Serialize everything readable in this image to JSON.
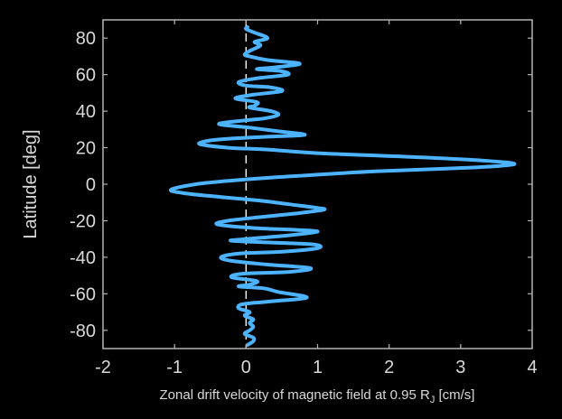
{
  "chart_data": {
    "type": "line",
    "title": "",
    "xlabel": "Zonal drift velocity of magnetic field at 0.95 R",
    "xlabel_subscript": "J",
    "xlabel_suffix": " [cm/s]",
    "ylabel": "Latitude [deg]",
    "xlim": [
      -2,
      4
    ],
    "ylim": [
      -90,
      90
    ],
    "xticks": [
      -2,
      -1,
      0,
      1,
      2,
      3,
      4
    ],
    "yticks": [
      -80,
      -60,
      -40,
      -20,
      0,
      20,
      40,
      60,
      80
    ],
    "xtick_labels": [
      "-2",
      "-1",
      "0",
      "1",
      "2",
      "3",
      "4"
    ],
    "ytick_labels": [
      "-80",
      "-60",
      "-40",
      "-20",
      "0",
      "20",
      "40",
      "60",
      "80"
    ],
    "grid": false,
    "zero_reference_line": {
      "x": 0,
      "style": "dashed",
      "color": "#ffffff"
    },
    "series": [
      {
        "color": "#4db3ff",
        "points": [
          [
            0.02,
            86
          ],
          [
            0.0,
            85
          ],
          [
            0.12,
            83
          ],
          [
            0.3,
            80
          ],
          [
            0.12,
            78
          ],
          [
            0.2,
            76
          ],
          [
            0.05,
            73
          ],
          [
            -0.02,
            71
          ],
          [
            0.05,
            70
          ],
          [
            0.3,
            68
          ],
          [
            0.75,
            66
          ],
          [
            0.4,
            64
          ],
          [
            0.15,
            63
          ],
          [
            0.48,
            62
          ],
          [
            0.58,
            60
          ],
          [
            0.15,
            58
          ],
          [
            -0.1,
            56
          ],
          [
            0.0,
            54
          ],
          [
            0.35,
            53
          ],
          [
            0.5,
            51
          ],
          [
            0.1,
            49
          ],
          [
            -0.15,
            47
          ],
          [
            0.15,
            45
          ],
          [
            0.12,
            43
          ],
          [
            0.05,
            42
          ],
          [
            0.35,
            40
          ],
          [
            0.45,
            38
          ],
          [
            0.25,
            36
          ],
          [
            0.0,
            35
          ],
          [
            -0.38,
            33
          ],
          [
            0.05,
            31
          ],
          [
            0.45,
            29
          ],
          [
            0.82,
            27
          ],
          [
            0.3,
            26
          ],
          [
            -0.2,
            25
          ],
          [
            -0.5,
            24
          ],
          [
            -0.65,
            22
          ],
          [
            -0.25,
            20
          ],
          [
            0.3,
            19
          ],
          [
            1.0,
            17
          ],
          [
            2.3,
            15
          ],
          [
            3.3,
            13
          ],
          [
            3.75,
            11
          ],
          [
            3.1,
            9
          ],
          [
            1.8,
            7
          ],
          [
            0.5,
            4
          ],
          [
            -0.2,
            2
          ],
          [
            -0.7,
            0
          ],
          [
            -1.05,
            -3
          ],
          [
            -0.85,
            -5
          ],
          [
            -0.35,
            -7
          ],
          [
            0.2,
            -9
          ],
          [
            0.6,
            -11
          ],
          [
            1.0,
            -13
          ],
          [
            1.08,
            -14
          ],
          [
            0.7,
            -16
          ],
          [
            0.2,
            -18
          ],
          [
            -0.25,
            -20
          ],
          [
            -0.4,
            -22
          ],
          [
            0.1,
            -24
          ],
          [
            0.7,
            -25
          ],
          [
            1.0,
            -26
          ],
          [
            0.6,
            -28
          ],
          [
            0.0,
            -30
          ],
          [
            -0.2,
            -31
          ],
          [
            0.4,
            -32
          ],
          [
            0.95,
            -33
          ],
          [
            1.0,
            -35
          ],
          [
            0.5,
            -37
          ],
          [
            -0.1,
            -38
          ],
          [
            -0.35,
            -40
          ],
          [
            -0.2,
            -42
          ],
          [
            0.3,
            -44
          ],
          [
            0.9,
            -46
          ],
          [
            0.6,
            -48
          ],
          [
            -0.05,
            -49
          ],
          [
            -0.2,
            -51
          ],
          [
            0.15,
            -53
          ],
          [
            0.05,
            -55
          ],
          [
            -0.1,
            -56
          ],
          [
            0.25,
            -57
          ],
          [
            0.45,
            -59
          ],
          [
            0.85,
            -62
          ],
          [
            0.4,
            -64
          ],
          [
            0.1,
            -65
          ],
          [
            -0.08,
            -66
          ],
          [
            -0.1,
            -68
          ],
          [
            0.05,
            -70
          ],
          [
            -0.02,
            -72
          ],
          [
            0.1,
            -74
          ],
          [
            0.05,
            -76
          ],
          [
            0.1,
            -78
          ],
          [
            0.05,
            -80
          ],
          [
            -0.02,
            -82
          ],
          [
            0.1,
            -84
          ],
          [
            0.1,
            -86
          ],
          [
            0.02,
            -88
          ]
        ]
      }
    ]
  }
}
